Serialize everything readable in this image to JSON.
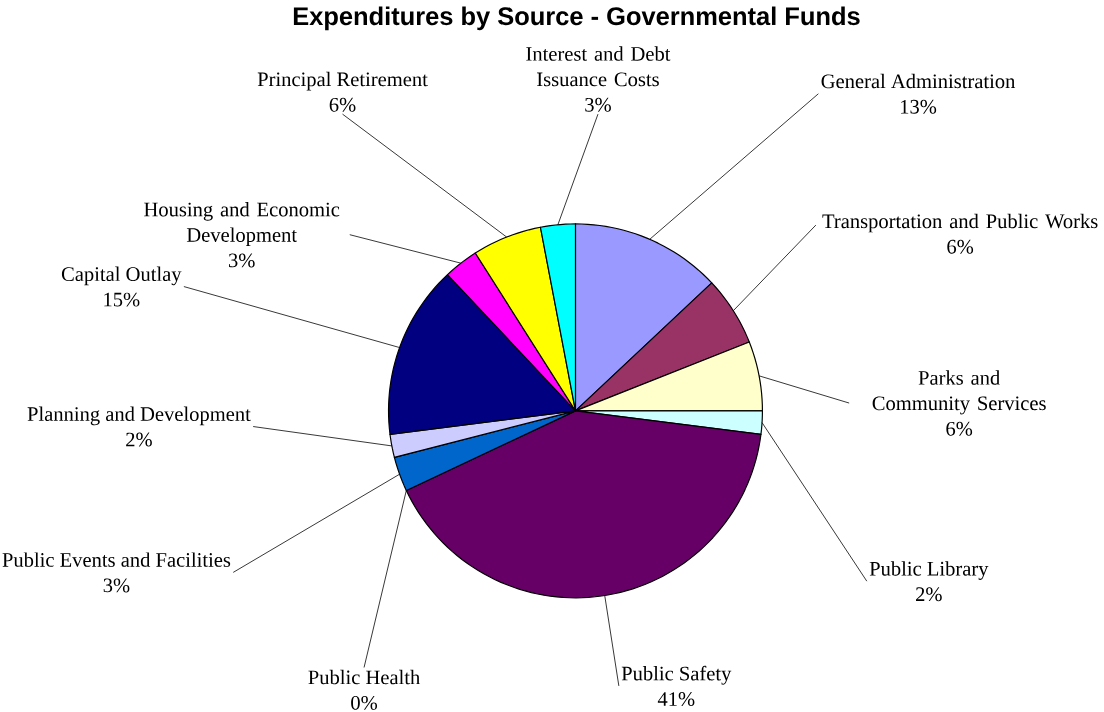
{
  "chart_data": {
    "type": "pie",
    "title": "Expenditures by Source - Governmental Funds",
    "categories": [
      "General Administration",
      "Transportation and Public Works",
      "Parks and Community Services",
      "Public Library",
      "Public Safety",
      "Public Health",
      "Public Events and Facilities",
      "Planning and Development",
      "Capital Outlay",
      "Housing and Economic Development",
      "Principal Retirement",
      "Interest and Debt Issuance Costs"
    ],
    "values": [
      13,
      6,
      6,
      2,
      41,
      0,
      3,
      2,
      15,
      3,
      6,
      3
    ],
    "value_labels": [
      "13%",
      "6%",
      "6%",
      "2%",
      "41%",
      "0%",
      "3%",
      "2%",
      "15%",
      "3%",
      "6%",
      "3%"
    ],
    "colors": [
      "#9999ff",
      "#993366",
      "#ffffcc",
      "#ccffff",
      "#660066",
      "#ff8080",
      "#0066cc",
      "#ccccff",
      "#000080",
      "#ff00ff",
      "#ffff00",
      "#00ffff"
    ],
    "legend": false
  }
}
